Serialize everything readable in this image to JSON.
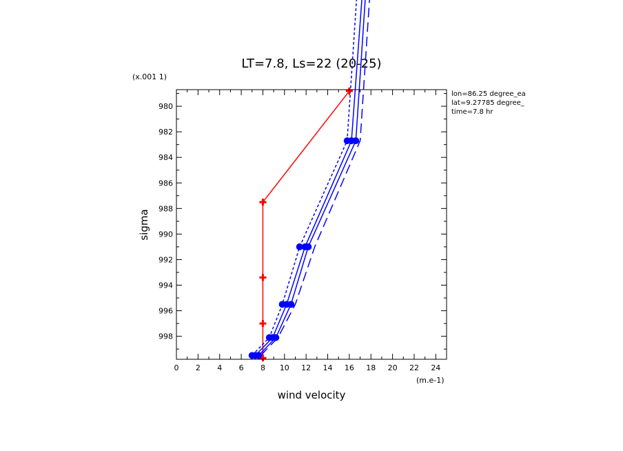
{
  "chart_data": {
    "type": "line",
    "title": "LT=7.8, Ls=22 (20-25)",
    "xlabel": "wind velocity",
    "ylabel": "sigma",
    "x_unit": "(m.e-1)",
    "y_scale_note": "(x.001 1)",
    "xlim": [
      0,
      25
    ],
    "ylim": [
      999.8,
      978.7
    ],
    "x_ticks": [
      0,
      2,
      4,
      6,
      8,
      10,
      12,
      14,
      16,
      18,
      20,
      22,
      24
    ],
    "x_tick_labels": [
      "0",
      "2",
      "4",
      "6",
      "8",
      "10",
      "12",
      "14",
      "16",
      "18",
      "20",
      "22",
      "24"
    ],
    "y_ticks": [
      980,
      982,
      984,
      986,
      988,
      990,
      992,
      994,
      996,
      998
    ],
    "y_tick_labels": [
      "980",
      "982",
      "984",
      "986",
      "988",
      "990",
      "992",
      "994",
      "996",
      "998"
    ],
    "annotations": [
      "lon=86.25 degree_ea",
      "lat=9.27785 degree_",
      "time=7.8 hr"
    ],
    "series": [
      {
        "color": "#ff0000",
        "dash": "solid",
        "marker": "plus",
        "x": [
          8.0,
          8.0,
          8.0,
          8.0,
          8.0,
          16.0
        ],
        "y": [
          999.7,
          997.0,
          993.4,
          987.5,
          987.5,
          978.8
        ]
      },
      {
        "color": "#0000ff",
        "dash": "solid",
        "marker": "dot",
        "x": [
          7.3,
          8.9,
          10.2,
          11.9,
          16.2,
          17.3
        ],
        "y": [
          999.5,
          998.1,
          995.5,
          991.0,
          982.7,
          970.0
        ]
      },
      {
        "color": "#0000ff",
        "dash": "short",
        "marker": "dot",
        "x": [
          7.0,
          8.6,
          9.8,
          11.4,
          15.8,
          16.8
        ],
        "y": [
          999.5,
          998.1,
          995.5,
          991.0,
          982.7,
          970.0
        ]
      },
      {
        "color": "#0000ff",
        "dash": "solid",
        "marker": "dot",
        "x": [
          7.6,
          9.2,
          10.6,
          12.2,
          16.6,
          17.6
        ],
        "y": [
          999.5,
          998.1,
          995.5,
          991.0,
          982.7,
          970.0
        ]
      },
      {
        "color": "#0000ff",
        "dash": "long",
        "marker": "none",
        "x": [
          7.8,
          9.4,
          11.0,
          12.8,
          17.0,
          18.0
        ],
        "y": [
          999.5,
          998.1,
          995.5,
          991.0,
          982.7,
          970.0
        ]
      }
    ]
  }
}
